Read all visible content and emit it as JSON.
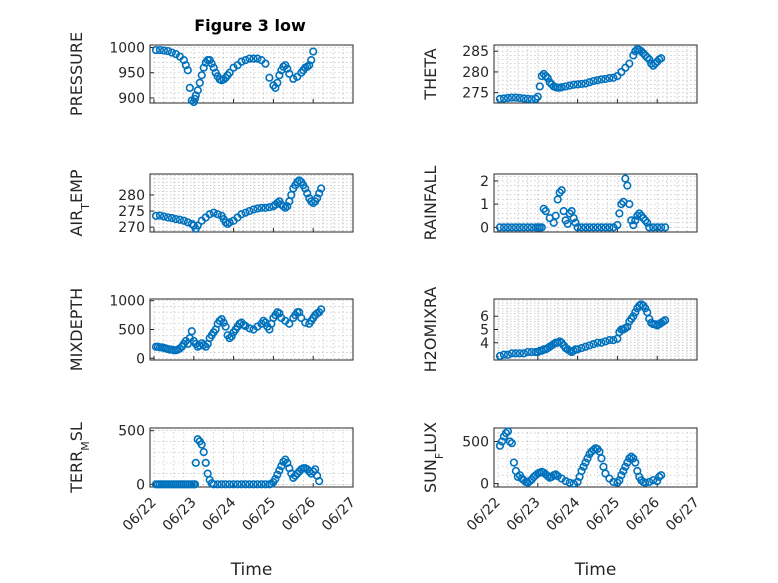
{
  "figure": {
    "title": "Figure 3 low"
  },
  "chart_data": [
    {
      "type": "scatter",
      "panel": "pressure",
      "ylabel": "PRESSURE",
      "xlabel": "",
      "ylim": [
        890,
        1005
      ],
      "yticks": [
        900,
        950,
        1000
      ],
      "grid": true,
      "x": [
        0.05,
        0.15,
        0.25,
        0.35,
        0.45,
        0.55,
        0.65,
        0.75,
        0.8,
        0.85,
        0.9,
        0.95,
        1.0,
        1.03,
        1.05,
        1.1,
        1.15,
        1.2,
        1.25,
        1.3,
        1.35,
        1.4,
        1.45,
        1.5,
        1.55,
        1.6,
        1.65,
        1.7,
        1.75,
        1.8,
        1.85,
        1.9,
        2.0,
        2.1,
        2.2,
        2.3,
        2.4,
        2.5,
        2.6,
        2.7,
        2.8,
        2.9,
        3.0,
        3.05,
        3.1,
        3.15,
        3.2,
        3.25,
        3.3,
        3.35,
        3.4,
        3.5,
        3.6,
        3.7,
        3.75,
        3.8,
        3.85,
        3.9,
        3.95,
        4.0
      ],
      "y": [
        995,
        995,
        994,
        993,
        990,
        987,
        982,
        975,
        965,
        955,
        920,
        895,
        892,
        898,
        905,
        915,
        930,
        945,
        960,
        970,
        975,
        975,
        968,
        960,
        950,
        943,
        937,
        935,
        937,
        940,
        945,
        950,
        960,
        965,
        972,
        975,
        978,
        978,
        978,
        975,
        968,
        940,
        925,
        920,
        930,
        945,
        955,
        962,
        965,
        958,
        948,
        938,
        942,
        950,
        955,
        960,
        962,
        965,
        975,
        992
      ]
    },
    {
      "type": "scatter",
      "panel": "theta",
      "ylabel": "THETA",
      "xlabel": "",
      "ylim": [
        272.5,
        286.5
      ],
      "yticks": [
        275,
        280,
        285
      ],
      "grid": true,
      "x": [
        0.05,
        0.15,
        0.25,
        0.35,
        0.45,
        0.55,
        0.65,
        0.75,
        0.85,
        0.95,
        1.0,
        1.05,
        1.1,
        1.15,
        1.2,
        1.25,
        1.3,
        1.35,
        1.4,
        1.45,
        1.5,
        1.55,
        1.6,
        1.7,
        1.8,
        1.9,
        2.0,
        2.1,
        2.2,
        2.3,
        2.4,
        2.5,
        2.6,
        2.7,
        2.8,
        2.9,
        3.0,
        3.1,
        3.2,
        3.3,
        3.4,
        3.45,
        3.5,
        3.55,
        3.6,
        3.65,
        3.7,
        3.75,
        3.8,
        3.85,
        3.9,
        3.95,
        4.0,
        4.05,
        4.1
      ],
      "y": [
        273.5,
        273.6,
        273.7,
        273.8,
        273.8,
        273.7,
        273.6,
        273.5,
        273.4,
        273.5,
        274.0,
        276.5,
        279.0,
        279.5,
        279.0,
        278.5,
        277.5,
        277.0,
        276.5,
        276.3,
        276.2,
        276.2,
        276.3,
        276.5,
        276.7,
        276.9,
        277.0,
        277.1,
        277.2,
        277.5,
        277.8,
        278.0,
        278.2,
        278.3,
        278.5,
        278.6,
        279.0,
        280.0,
        281.0,
        282.0,
        284.0,
        285.0,
        285.5,
        285.3,
        285.0,
        284.5,
        284.0,
        283.5,
        283.0,
        282.0,
        281.5,
        282.0,
        282.5,
        283.0,
        283.3
      ]
    },
    {
      "type": "scatter",
      "panel": "air_temp",
      "ylabel": "AIR_TEMP",
      "ylabel_parts": [
        "AIR",
        "T",
        "EMP"
      ],
      "xlabel": "",
      "ylim": [
        268.5,
        286.5
      ],
      "yticks": [
        270,
        275,
        280
      ],
      "grid": true,
      "x": [
        0.05,
        0.15,
        0.25,
        0.35,
        0.45,
        0.55,
        0.65,
        0.75,
        0.85,
        0.95,
        1.0,
        1.05,
        1.1,
        1.2,
        1.3,
        1.4,
        1.5,
        1.6,
        1.7,
        1.75,
        1.8,
        1.85,
        1.9,
        2.0,
        2.1,
        2.2,
        2.3,
        2.4,
        2.5,
        2.6,
        2.7,
        2.8,
        2.9,
        3.0,
        3.05,
        3.1,
        3.15,
        3.2,
        3.25,
        3.3,
        3.35,
        3.4,
        3.45,
        3.5,
        3.55,
        3.6,
        3.65,
        3.7,
        3.75,
        3.8,
        3.85,
        3.9,
        3.95,
        4.0,
        4.05,
        4.1,
        4.15,
        4.2
      ],
      "y": [
        273.5,
        273.6,
        273.3,
        273.0,
        272.8,
        272.5,
        272.3,
        272.0,
        271.5,
        271.0,
        270.5,
        269.5,
        270.5,
        272.0,
        273.0,
        274.0,
        274.5,
        274.0,
        273.5,
        272.5,
        271.5,
        271.0,
        271.5,
        272.0,
        273.0,
        274.0,
        274.5,
        275.0,
        275.5,
        275.8,
        276.0,
        276.0,
        276.2,
        276.5,
        277.0,
        277.5,
        278.0,
        277.0,
        276.5,
        276.0,
        276.5,
        278.0,
        280.0,
        282.0,
        283.0,
        284.0,
        284.5,
        284.0,
        283.0,
        282.0,
        280.5,
        279.0,
        278.0,
        277.5,
        278.0,
        279.0,
        280.5,
        282.0
      ]
    },
    {
      "type": "scatter",
      "panel": "rainfall",
      "ylabel": "RAINFALL",
      "xlabel": "",
      "ylim": [
        -0.2,
        2.3
      ],
      "yticks": [
        0,
        1,
        2
      ],
      "grid": true,
      "x": [
        0.05,
        0.15,
        0.25,
        0.35,
        0.45,
        0.55,
        0.65,
        0.75,
        0.85,
        0.95,
        1.0,
        1.05,
        1.1,
        1.15,
        1.2,
        1.3,
        1.4,
        1.45,
        1.5,
        1.55,
        1.6,
        1.65,
        1.7,
        1.75,
        1.8,
        1.85,
        1.9,
        1.95,
        2.0,
        2.1,
        2.2,
        2.3,
        2.4,
        2.5,
        2.6,
        2.7,
        2.8,
        2.9,
        3.0,
        3.05,
        3.1,
        3.15,
        3.2,
        3.25,
        3.3,
        3.35,
        3.4,
        3.45,
        3.5,
        3.55,
        3.6,
        3.65,
        3.7,
        3.75,
        3.8,
        3.9,
        4.0,
        4.1,
        4.2
      ],
      "y": [
        0,
        0,
        0,
        0,
        0,
        0,
        0,
        0,
        0,
        0,
        0,
        0,
        0,
        0.8,
        0.7,
        0.4,
        0.2,
        0.5,
        1.2,
        1.5,
        1.6,
        0.7,
        0.3,
        0.15,
        0.6,
        0.7,
        0.4,
        0.2,
        0,
        0,
        0,
        0,
        0,
        0,
        0,
        0,
        0,
        0,
        0.1,
        0.6,
        1.0,
        1.1,
        2.1,
        1.8,
        1.0,
        0.3,
        0.1,
        0.3,
        0.5,
        0.6,
        0.5,
        0.4,
        0.3,
        0.2,
        0,
        0,
        0,
        0,
        0
      ]
    },
    {
      "type": "scatter",
      "panel": "mixdepth",
      "ylabel": "MIXDEPTH",
      "xlabel": "",
      "ylim": [
        -30,
        1030
      ],
      "yticks": [
        0,
        500,
        1000
      ],
      "grid": true,
      "x": [
        0.05,
        0.1,
        0.15,
        0.2,
        0.25,
        0.3,
        0.35,
        0.4,
        0.45,
        0.5,
        0.55,
        0.6,
        0.65,
        0.7,
        0.75,
        0.8,
        0.85,
        0.9,
        0.95,
        1.0,
        1.05,
        1.1,
        1.15,
        1.2,
        1.25,
        1.3,
        1.35,
        1.4,
        1.45,
        1.5,
        1.55,
        1.6,
        1.65,
        1.7,
        1.75,
        1.8,
        1.85,
        1.9,
        1.95,
        2.0,
        2.05,
        2.1,
        2.15,
        2.2,
        2.25,
        2.3,
        2.4,
        2.5,
        2.6,
        2.7,
        2.75,
        2.8,
        2.85,
        2.9,
        2.95,
        3.0,
        3.05,
        3.1,
        3.15,
        3.2,
        3.3,
        3.4,
        3.5,
        3.55,
        3.6,
        3.65,
        3.7,
        3.8,
        3.9,
        3.95,
        4.0,
        4.05,
        4.1,
        4.15,
        4.2
      ],
      "y": [
        200,
        200,
        190,
        190,
        180,
        170,
        160,
        150,
        150,
        140,
        140,
        150,
        170,
        200,
        250,
        300,
        250,
        350,
        470,
        300,
        250,
        200,
        220,
        260,
        230,
        200,
        250,
        350,
        400,
        450,
        500,
        600,
        650,
        680,
        620,
        550,
        400,
        350,
        380,
        450,
        500,
        550,
        600,
        620,
        580,
        560,
        520,
        500,
        550,
        600,
        650,
        620,
        550,
        500,
        600,
        700,
        750,
        800,
        780,
        700,
        650,
        600,
        700,
        750,
        800,
        800,
        700,
        620,
        600,
        650,
        700,
        750,
        780,
        800,
        850
      ]
    },
    {
      "type": "scatter",
      "panel": "h2omixra",
      "ylabel": "H2OMIXRA",
      "xlabel": "",
      "ylim": [
        2.7,
        7.3
      ],
      "yticks": [
        4,
        5,
        6
      ],
      "grid": true,
      "x": [
        0.05,
        0.15,
        0.25,
        0.35,
        0.45,
        0.55,
        0.65,
        0.75,
        0.85,
        0.95,
        1.0,
        1.05,
        1.1,
        1.15,
        1.2,
        1.25,
        1.3,
        1.35,
        1.4,
        1.45,
        1.5,
        1.55,
        1.6,
        1.65,
        1.7,
        1.75,
        1.8,
        1.85,
        1.9,
        1.95,
        2.0,
        2.1,
        2.2,
        2.3,
        2.4,
        2.5,
        2.6,
        2.7,
        2.8,
        2.9,
        3.0,
        3.05,
        3.1,
        3.15,
        3.2,
        3.25,
        3.3,
        3.35,
        3.4,
        3.45,
        3.5,
        3.55,
        3.6,
        3.65,
        3.7,
        3.75,
        3.8,
        3.85,
        3.9,
        3.95,
        4.0,
        4.05,
        4.1,
        4.15,
        4.2
      ],
      "y": [
        3.0,
        3.1,
        3.1,
        3.2,
        3.2,
        3.2,
        3.2,
        3.3,
        3.3,
        3.3,
        3.3,
        3.4,
        3.4,
        3.5,
        3.5,
        3.6,
        3.7,
        3.8,
        3.9,
        4.0,
        4.0,
        4.1,
        4.0,
        3.8,
        3.6,
        3.5,
        3.4,
        3.3,
        3.4,
        3.5,
        3.5,
        3.6,
        3.7,
        3.8,
        3.9,
        4.0,
        4.0,
        4.1,
        4.2,
        4.2,
        4.3,
        4.8,
        5.0,
        5.0,
        5.1,
        5.2,
        5.6,
        5.8,
        6.0,
        6.3,
        6.6,
        6.8,
        6.9,
        6.8,
        6.6,
        6.3,
        5.8,
        5.5,
        5.4,
        5.4,
        5.3,
        5.4,
        5.5,
        5.6,
        5.7
      ]
    },
    {
      "type": "scatter",
      "panel": "terr_msl",
      "ylabel": "TERR_MSL",
      "ylabel_parts": [
        "TERR",
        "M",
        "SL"
      ],
      "xlabel": "Time",
      "ylim": [
        -25,
        525
      ],
      "yticks": [
        0,
        500
      ],
      "xticks": [
        "06/22",
        "06/23",
        "06/24",
        "06/25",
        "06/26",
        "06/27"
      ],
      "grid": true,
      "x": [
        0.05,
        0.1,
        0.15,
        0.2,
        0.25,
        0.3,
        0.35,
        0.4,
        0.45,
        0.5,
        0.55,
        0.6,
        0.65,
        0.7,
        0.75,
        0.8,
        0.85,
        0.9,
        0.95,
        1.0,
        1.03,
        1.05,
        1.1,
        1.15,
        1.2,
        1.25,
        1.3,
        1.35,
        1.4,
        1.45,
        1.5,
        1.6,
        1.7,
        1.8,
        1.9,
        2.0,
        2.1,
        2.2,
        2.3,
        2.4,
        2.5,
        2.6,
        2.7,
        2.8,
        2.9,
        2.95,
        3.0,
        3.05,
        3.1,
        3.15,
        3.2,
        3.25,
        3.3,
        3.35,
        3.4,
        3.45,
        3.5,
        3.55,
        3.6,
        3.65,
        3.7,
        3.75,
        3.8,
        3.85,
        3.9,
        3.95,
        4.0,
        4.05,
        4.1,
        4.15
      ],
      "y": [
        0,
        0,
        0,
        0,
        0,
        0,
        0,
        0,
        0,
        0,
        0,
        0,
        0,
        0,
        0,
        0,
        0,
        0,
        0,
        0,
        0,
        200,
        420,
        400,
        370,
        300,
        200,
        100,
        40,
        10,
        0,
        0,
        0,
        0,
        0,
        0,
        0,
        0,
        0,
        0,
        0,
        0,
        0,
        0,
        0,
        5,
        20,
        50,
        90,
        130,
        170,
        210,
        230,
        200,
        150,
        100,
        60,
        80,
        100,
        120,
        140,
        150,
        150,
        140,
        120,
        100,
        120,
        140,
        80,
        30
      ]
    },
    {
      "type": "scatter",
      "panel": "sun_flux",
      "ylabel": "SUN_FLUX",
      "ylabel_parts": [
        "SUN",
        "F",
        "LUX"
      ],
      "xlabel": "Time",
      "ylim": [
        -40,
        660
      ],
      "yticks": [
        0,
        500
      ],
      "xticks": [
        "06/22",
        "06/23",
        "06/24",
        "06/25",
        "06/26",
        "06/27"
      ],
      "grid": true,
      "x": [
        0.05,
        0.1,
        0.15,
        0.2,
        0.25,
        0.3,
        0.35,
        0.4,
        0.45,
        0.5,
        0.55,
        0.6,
        0.65,
        0.7,
        0.75,
        0.8,
        0.85,
        0.9,
        0.95,
        1.0,
        1.05,
        1.1,
        1.15,
        1.2,
        1.25,
        1.3,
        1.35,
        1.4,
        1.45,
        1.5,
        1.6,
        1.7,
        1.8,
        1.9,
        2.0,
        2.05,
        2.1,
        2.15,
        2.2,
        2.25,
        2.3,
        2.35,
        2.4,
        2.45,
        2.5,
        2.55,
        2.6,
        2.65,
        2.7,
        2.8,
        2.9,
        3.0,
        3.05,
        3.1,
        3.15,
        3.2,
        3.25,
        3.3,
        3.35,
        3.4,
        3.45,
        3.5,
        3.55,
        3.6,
        3.65,
        3.7,
        3.8,
        3.9,
        4.0,
        4.05,
        4.1
      ],
      "y": [
        450,
        500,
        560,
        600,
        620,
        500,
        480,
        250,
        150,
        80,
        100,
        60,
        40,
        20,
        10,
        30,
        50,
        80,
        100,
        120,
        130,
        140,
        130,
        110,
        90,
        70,
        80,
        100,
        110,
        90,
        60,
        30,
        10,
        0,
        20,
        80,
        150,
        200,
        250,
        300,
        350,
        380,
        400,
        420,
        410,
        380,
        300,
        200,
        120,
        60,
        20,
        10,
        40,
        100,
        150,
        200,
        250,
        300,
        320,
        300,
        250,
        150,
        80,
        40,
        20,
        10,
        20,
        40,
        30,
        80,
        100
      ]
    }
  ]
}
